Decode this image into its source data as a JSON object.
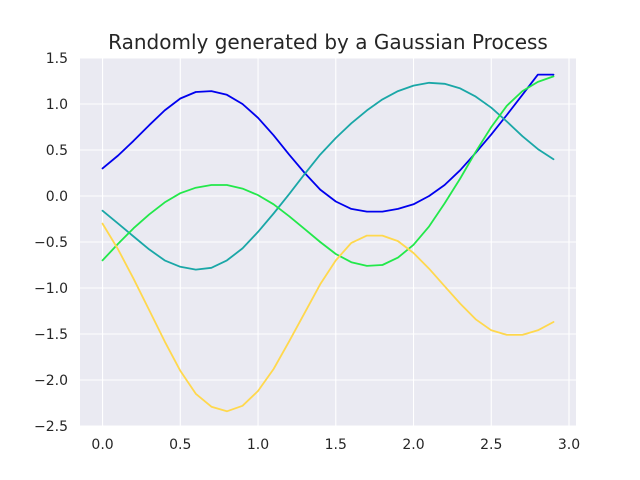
{
  "chart_data": {
    "type": "line",
    "title": "Randomly generated by a Gaussian Process",
    "xlabel": "",
    "ylabel": "",
    "xlim": [
      -0.145,
      3.045
    ],
    "ylim": [
      -2.5,
      1.5
    ],
    "xticks": [
      0.0,
      0.5,
      1.0,
      1.5,
      2.0,
      2.5,
      3.0
    ],
    "xtick_labels": [
      "0.0",
      "0.5",
      "1.0",
      "1.5",
      "2.0",
      "2.5",
      "3.0"
    ],
    "yticks": [
      -2.5,
      -2.0,
      -1.5,
      -1.0,
      -0.5,
      0.0,
      0.5,
      1.0,
      1.5
    ],
    "ytick_labels": [
      "−2.5",
      "−2.0",
      "−1.5",
      "−1.0",
      "−0.5",
      "0.0",
      "0.5",
      "1.0",
      "1.5"
    ],
    "grid": true,
    "style": {
      "background": "#eaeaf2",
      "grid_color": "#ffffff",
      "text_color": "#262626"
    },
    "x": [
      0.0,
      0.1,
      0.2,
      0.3,
      0.4,
      0.5,
      0.6,
      0.7,
      0.8,
      0.9,
      1.0,
      1.1,
      1.2,
      1.3,
      1.4,
      1.5,
      1.6,
      1.7,
      1.8,
      1.9,
      2.0,
      2.1,
      2.2,
      2.3,
      2.4,
      2.5,
      2.6,
      2.7,
      2.8,
      2.9
    ],
    "series": [
      {
        "color": "#0000ee",
        "values": [
          0.3,
          0.44,
          0.6,
          0.77,
          0.93,
          1.06,
          1.13,
          1.14,
          1.1,
          1.0,
          0.85,
          0.66,
          0.45,
          0.25,
          0.07,
          -0.06,
          -0.14,
          -0.17,
          -0.17,
          -0.14,
          -0.09,
          0.0,
          0.12,
          0.28,
          0.47,
          0.67,
          0.88,
          1.1,
          1.32,
          1.32
        ]
      },
      {
        "color": "#1aa7a7",
        "values": [
          -0.16,
          -0.3,
          -0.44,
          -0.58,
          -0.7,
          -0.77,
          -0.8,
          -0.78,
          -0.7,
          -0.57,
          -0.39,
          -0.19,
          0.02,
          0.24,
          0.45,
          0.63,
          0.79,
          0.93,
          1.05,
          1.14,
          1.2,
          1.23,
          1.22,
          1.17,
          1.08,
          0.96,
          0.81,
          0.65,
          0.51,
          0.4
        ]
      },
      {
        "color": "#22e84a",
        "values": [
          -0.7,
          -0.52,
          -0.35,
          -0.2,
          -0.07,
          0.03,
          0.09,
          0.12,
          0.12,
          0.08,
          0.01,
          -0.09,
          -0.22,
          -0.36,
          -0.5,
          -0.63,
          -0.72,
          -0.76,
          -0.75,
          -0.67,
          -0.53,
          -0.33,
          -0.08,
          0.19,
          0.48,
          0.75,
          0.98,
          1.14,
          1.24,
          1.3
        ]
      },
      {
        "color": "#ffd84d",
        "values": [
          -0.3,
          -0.58,
          -0.9,
          -1.24,
          -1.58,
          -1.9,
          -2.15,
          -2.29,
          -2.34,
          -2.28,
          -2.12,
          -1.88,
          -1.58,
          -1.27,
          -0.96,
          -0.7,
          -0.51,
          -0.43,
          -0.43,
          -0.49,
          -0.62,
          -0.79,
          -0.98,
          -1.17,
          -1.34,
          -1.46,
          -1.51,
          -1.51,
          -1.46,
          -1.37
        ]
      }
    ]
  }
}
